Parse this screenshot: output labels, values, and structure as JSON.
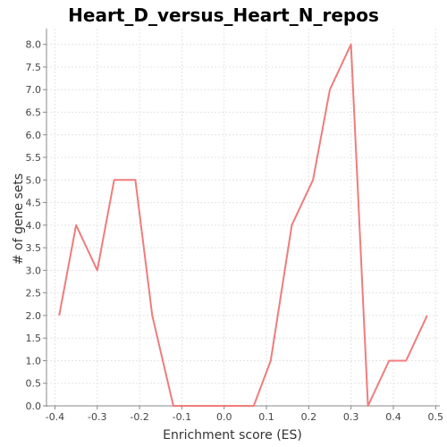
{
  "chart_data": {
    "type": "line",
    "title": "Heart_D_versus_Heart_N_repos",
    "xlabel": "Enrichment score (ES)",
    "ylabel": "# of gene sets",
    "xlim": [
      -0.42,
      0.51
    ],
    "ylim": [
      0,
      8.35
    ],
    "x_ticks": [
      -0.4,
      -0.3,
      -0.2,
      -0.1,
      0.0,
      0.1,
      0.2,
      0.3,
      0.4,
      0.5
    ],
    "x_tick_labels": [
      "-0.4",
      "-0.3",
      "-0.2",
      "-0.1",
      "0.0",
      "0.1",
      "0.2",
      "0.3",
      "0.4",
      "0.5"
    ],
    "y_ticks": [
      0,
      0.5,
      1,
      1.5,
      2,
      2.5,
      3,
      3.5,
      4,
      4.5,
      5,
      5.5,
      6,
      6.5,
      7,
      7.5,
      8
    ],
    "y_tick_labels": [
      "0.0",
      "0.5",
      "1.0",
      "1.5",
      "2.0",
      "2.5",
      "3.0",
      "3.5",
      "4.0",
      "4.5",
      "5.0",
      "5.5",
      "6.0",
      "6.5",
      "7.0",
      "7.5",
      "8.0"
    ],
    "grid": true,
    "legend": "none",
    "series": [
      {
        "color": "#f07c7c",
        "x": [
          -0.39,
          -0.35,
          -0.3,
          -0.26,
          -0.21,
          -0.17,
          -0.12,
          -0.07,
          -0.03,
          0.02,
          0.07,
          0.11,
          0.16,
          0.21,
          0.25,
          0.3,
          0.34,
          0.39,
          0.43,
          0.48
        ],
        "y": [
          2,
          4,
          3,
          5,
          5,
          2,
          0,
          0,
          0,
          0,
          0,
          1,
          4,
          5,
          7,
          8,
          0,
          1,
          1,
          2
        ]
      }
    ]
  }
}
